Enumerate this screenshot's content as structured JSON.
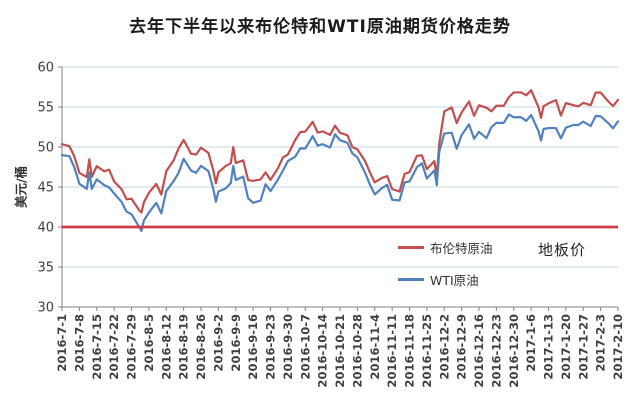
{
  "chart_data": {
    "type": "line",
    "title": "去年下半年以来布伦特和WTI原油期货价格走势",
    "ylabel": "美元/桶",
    "xlabel": "",
    "ylim": [
      30,
      60
    ],
    "yticks": [
      30,
      35,
      40,
      45,
      50,
      55,
      60
    ],
    "grid": "horizontal",
    "legend_position": "inside-lower-right",
    "x_tick_interval_days": 7,
    "x_tick_labels": [
      "2016-7-1",
      "2016-7-8",
      "2016-7-15",
      "2016-7-22",
      "2016-7-29",
      "2016-8-5",
      "2016-8-12",
      "2016-8-19",
      "2016-8-26",
      "2016-9-2",
      "2016-9-9",
      "2016-9-16",
      "2016-9-23",
      "2016-9-30",
      "2016-10-7",
      "2016-10-14",
      "2016-10-21",
      "2016-10-28",
      "2016-11-4",
      "2016-11-11",
      "2016-11-18",
      "2016-11-25",
      "2016-12-2",
      "2016-12-9",
      "2016-12-16",
      "2016-12-23",
      "2016-12-30",
      "2017-1-6",
      "2017-1-13",
      "2017-1-20",
      "2017-1-27",
      "2017-2-3",
      "2017-2-10"
    ],
    "x_days": [
      0,
      3,
      5,
      7,
      10,
      11,
      12,
      14,
      17,
      19,
      21,
      24,
      26,
      28,
      31,
      32,
      33,
      35,
      38,
      40,
      42,
      45,
      47,
      49,
      52,
      54,
      56,
      59,
      61,
      62,
      63,
      66,
      68,
      69,
      70,
      73,
      75,
      77,
      80,
      82,
      84,
      87,
      89,
      91,
      94,
      96,
      98,
      101,
      103,
      105,
      108,
      110,
      112,
      115,
      117,
      119,
      122,
      124,
      126,
      129,
      131,
      133,
      136,
      138,
      140,
      143,
      145,
      147,
      150,
      151,
      152,
      154,
      157,
      159,
      161,
      164,
      166,
      168,
      171,
      173,
      175,
      178,
      180,
      182,
      185,
      187,
      189,
      192,
      193,
      194,
      196,
      199,
      201,
      203,
      206,
      208,
      210,
      213,
      215,
      217,
      220,
      222,
      224
    ],
    "x_domain_days": [
      0,
      224
    ],
    "series": [
      {
        "name": "布伦特原油",
        "color": "#C0504D",
        "values": [
          50.35,
          50.1,
          48.8,
          46.76,
          46.25,
          48.47,
          46.26,
          47.61,
          46.96,
          47.17,
          45.69,
          44.72,
          43.47,
          43.53,
          42.14,
          41.8,
          43.1,
          44.27,
          45.39,
          44.05,
          46.97,
          48.35,
          49.85,
          50.88,
          49.16,
          49.05,
          49.92,
          49.26,
          47.04,
          45.45,
          46.83,
          47.63,
          47.98,
          49.99,
          48.01,
          48.32,
          45.85,
          45.77,
          45.95,
          46.83,
          45.89,
          47.35,
          48.69,
          49.06,
          50.89,
          51.86,
          51.93,
          53.14,
          51.8,
          51.95,
          51.52,
          52.67,
          51.78,
          51.46,
          49.98,
          49.71,
          48.3,
          46.86,
          45.58,
          46.15,
          46.36,
          44.75,
          44.43,
          46.63,
          46.86,
          48.9,
          48.95,
          47.24,
          48.24,
          46.38,
          50.47,
          54.46,
          54.94,
          53.0,
          54.33,
          55.69,
          53.9,
          55.21,
          54.92,
          54.46,
          55.16,
          55.16,
          56.22,
          56.82,
          56.82,
          56.46,
          57.1,
          54.94,
          53.64,
          55.1,
          55.45,
          55.86,
          53.93,
          55.49,
          55.23,
          55.08,
          55.52,
          55.23,
          56.8,
          56.81,
          55.72,
          55.12,
          55.9
        ]
      },
      {
        "name": "WTI原油",
        "color": "#4F81BD",
        "values": [
          48.99,
          48.85,
          47.43,
          45.41,
          44.76,
          46.8,
          44.75,
          45.95,
          45.24,
          44.94,
          44.19,
          43.13,
          41.92,
          41.6,
          40.06,
          39.51,
          40.83,
          41.8,
          43.02,
          41.71,
          44.49,
          45.74,
          46.79,
          48.52,
          47.05,
          46.77,
          47.64,
          46.98,
          44.7,
          43.16,
          44.44,
          44.83,
          45.5,
          47.62,
          45.88,
          46.29,
          43.58,
          43.03,
          43.3,
          45.34,
          44.48,
          45.93,
          47.05,
          48.24,
          48.81,
          49.83,
          49.81,
          51.35,
          50.18,
          50.35,
          49.94,
          51.6,
          50.85,
          50.52,
          49.18,
          48.7,
          46.86,
          45.34,
          44.07,
          44.89,
          45.27,
          43.41,
          43.32,
          45.57,
          45.69,
          47.49,
          47.96,
          46.06,
          47.08,
          45.23,
          49.44,
          51.68,
          51.79,
          49.77,
          51.5,
          52.83,
          51.04,
          51.9,
          51.12,
          52.49,
          53.02,
          53.02,
          54.06,
          53.72,
          53.72,
          53.26,
          53.99,
          51.96,
          50.82,
          52.25,
          52.37,
          52.37,
          51.08,
          52.42,
          52.75,
          52.75,
          53.17,
          52.63,
          53.88,
          53.83,
          53.01,
          52.34,
          53.2
        ]
      }
    ],
    "floor_line": {
      "label": "地板价",
      "value": 40,
      "color": "#CE3D47"
    },
    "colors": {
      "gridline": "#C6D4E8",
      "axis": "#808080",
      "tick_label": "#3F3F3F",
      "title": "#1A1A1A",
      "background": "#FFFFFF"
    }
  }
}
